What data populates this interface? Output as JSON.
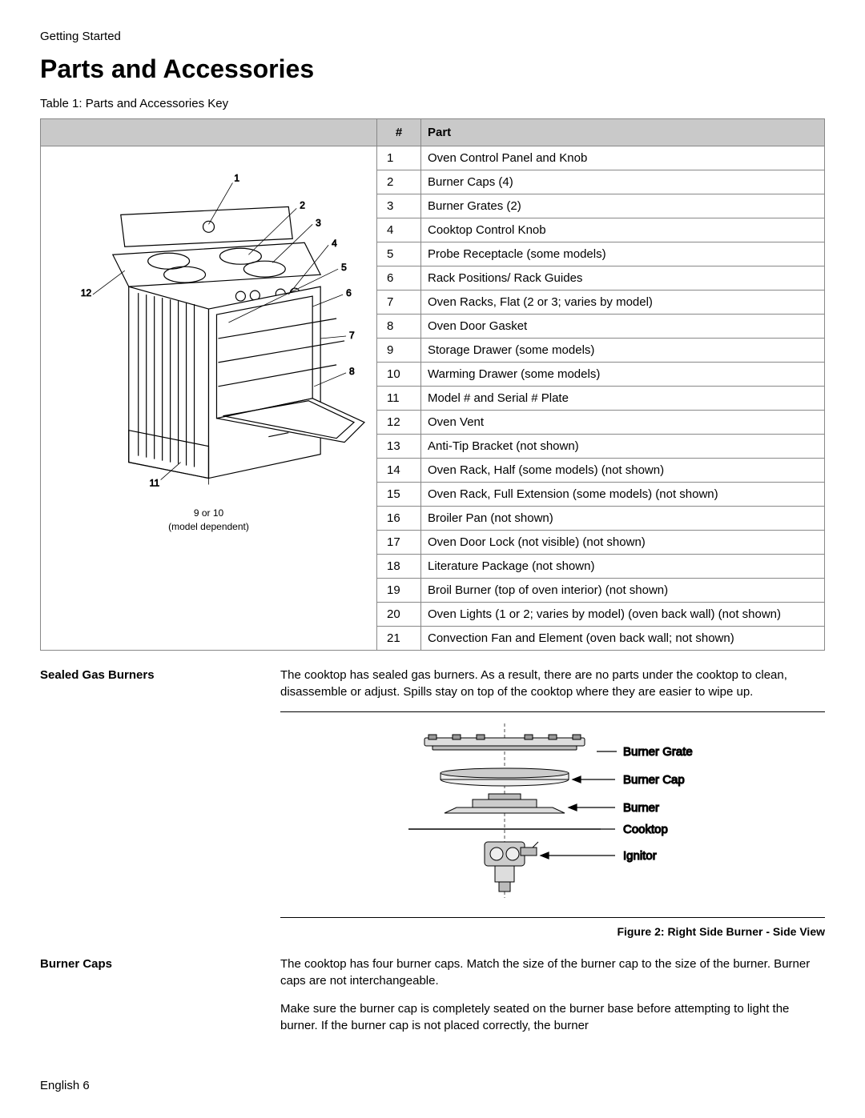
{
  "breadcrumb": "Getting Started",
  "title": "Parts and Accessories",
  "table_caption": "Table 1: Parts and Accessories Key",
  "headers": {
    "num": "#",
    "part": "Part"
  },
  "diagram_note_line1": "9 or 10",
  "diagram_note_line2": "(model dependent)",
  "parts": [
    {
      "n": "1",
      "name": "Oven Control Panel and Knob"
    },
    {
      "n": "2",
      "name": "Burner Caps (4)"
    },
    {
      "n": "3",
      "name": "Burner Grates (2)"
    },
    {
      "n": "4",
      "name": "Cooktop Control Knob"
    },
    {
      "n": "5",
      "name": "Probe Receptacle (some models)"
    },
    {
      "n": "6",
      "name": "Rack Positions/ Rack Guides"
    },
    {
      "n": "7",
      "name": "Oven Racks, Flat (2 or 3; varies by model)"
    },
    {
      "n": "8",
      "name": "Oven Door Gasket"
    },
    {
      "n": "9",
      "name": "Storage Drawer (some models)"
    },
    {
      "n": "10",
      "name": "Warming Drawer (some models)"
    },
    {
      "n": "11",
      "name": "Model # and Serial # Plate"
    },
    {
      "n": "12",
      "name": "Oven Vent"
    },
    {
      "n": "13",
      "name": "Anti-Tip Bracket (not shown)"
    },
    {
      "n": "14",
      "name": "Oven Rack, Half (some models) (not shown)"
    },
    {
      "n": "15",
      "name": "Oven Rack, Full Extension (some models) (not shown)"
    },
    {
      "n": "16",
      "name": "Broiler Pan (not shown)"
    },
    {
      "n": "17",
      "name": "Oven Door Lock (not visible) (not shown)"
    },
    {
      "n": "18",
      "name": "Literature Package (not shown)"
    },
    {
      "n": "19",
      "name": "Broil Burner (top of oven interior) (not shown)"
    },
    {
      "n": "20",
      "name": "Oven Lights (1 or 2; varies by model) (oven back wall) (not shown)"
    },
    {
      "n": "21",
      "name": "Convection Fan and Element (oven back wall; not shown)"
    }
  ],
  "callouts": [
    "1",
    "2",
    "3",
    "4",
    "5",
    "6",
    "7",
    "8",
    "11",
    "12"
  ],
  "sealed_burners": {
    "heading": "Sealed Gas Burners",
    "body": "The cooktop has sealed gas burners. As a result, there are no parts under the cooktop to clean, disassemble or adjust. Spills stay on top of the cooktop where they are easier to wipe up."
  },
  "burner_labels": {
    "grate": "Burner Grate",
    "cap": "Burner Cap",
    "burner": "Burner",
    "cooktop": "Cooktop",
    "ignitor": "Ignitor"
  },
  "figure2_caption": "Figure 2: Right Side Burner - Side View",
  "burner_caps": {
    "heading": "Burner Caps",
    "p1": "The cooktop has four burner caps. Match the size of the burner cap to the size of the burner. Burner caps are not interchangeable.",
    "p2": "Make sure the burner cap is completely seated on the burner base before attempting to light the burner. If the burner cap is not placed correctly, the burner"
  },
  "footer": "English 6",
  "colors": {
    "header_bg": "#c9c9c9",
    "border": "#888888",
    "text": "#000000",
    "bg": "#ffffff"
  }
}
